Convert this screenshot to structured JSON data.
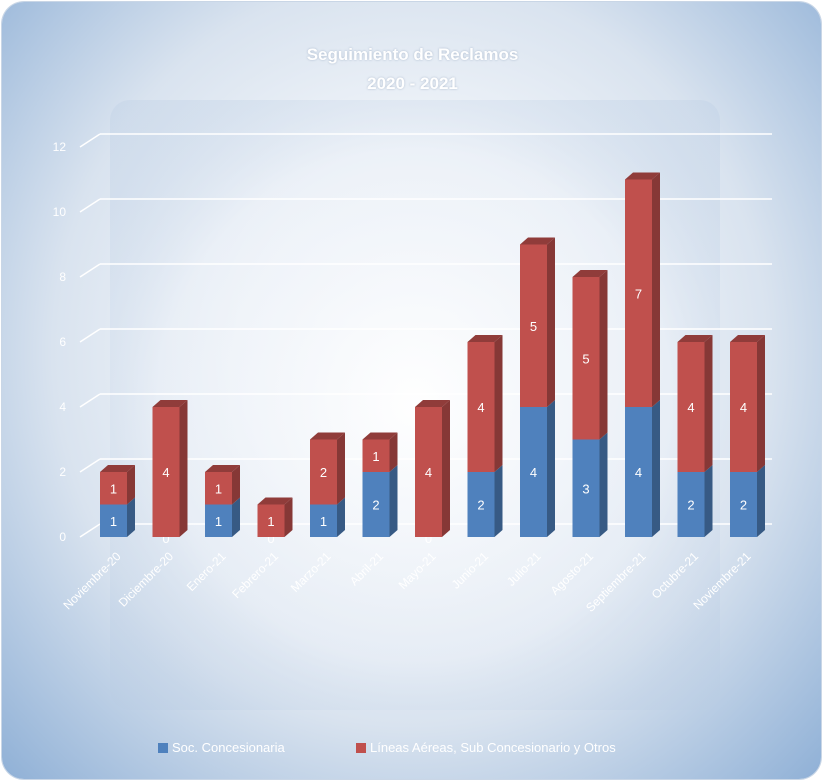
{
  "chart_data": {
    "type": "bar",
    "stacked": true,
    "three_d": true,
    "title": "Seguimiento de Reclamos",
    "subtitle": "2020 - 2021",
    "categories": [
      "Noviembre-20",
      "Diciembre-20",
      "Enero-21",
      "Febrero-21",
      "Marzo-21",
      "Abril-21",
      "Mayo-21",
      "Junio-21",
      "Julio-21",
      "Agosto-21",
      "Septiembre-21",
      "Octubre-21",
      "Noviembre-21"
    ],
    "series": [
      {
        "name": "Soc. Concesionaria",
        "color": "#4f81bd",
        "values": [
          1,
          0,
          1,
          0,
          1,
          2,
          0,
          2,
          4,
          3,
          4,
          2,
          2
        ]
      },
      {
        "name": "Líneas Aéreas, Sub Concesionario y Otros",
        "color": "#c0504d",
        "values": [
          1,
          4,
          1,
          1,
          2,
          1,
          4,
          4,
          5,
          5,
          7,
          4,
          4
        ]
      }
    ],
    "yticks": [
      "0",
      "2",
      "4",
      "6",
      "8",
      "10",
      "12"
    ],
    "ylim": [
      0,
      12
    ],
    "grid": true,
    "legend_position": "bottom"
  }
}
